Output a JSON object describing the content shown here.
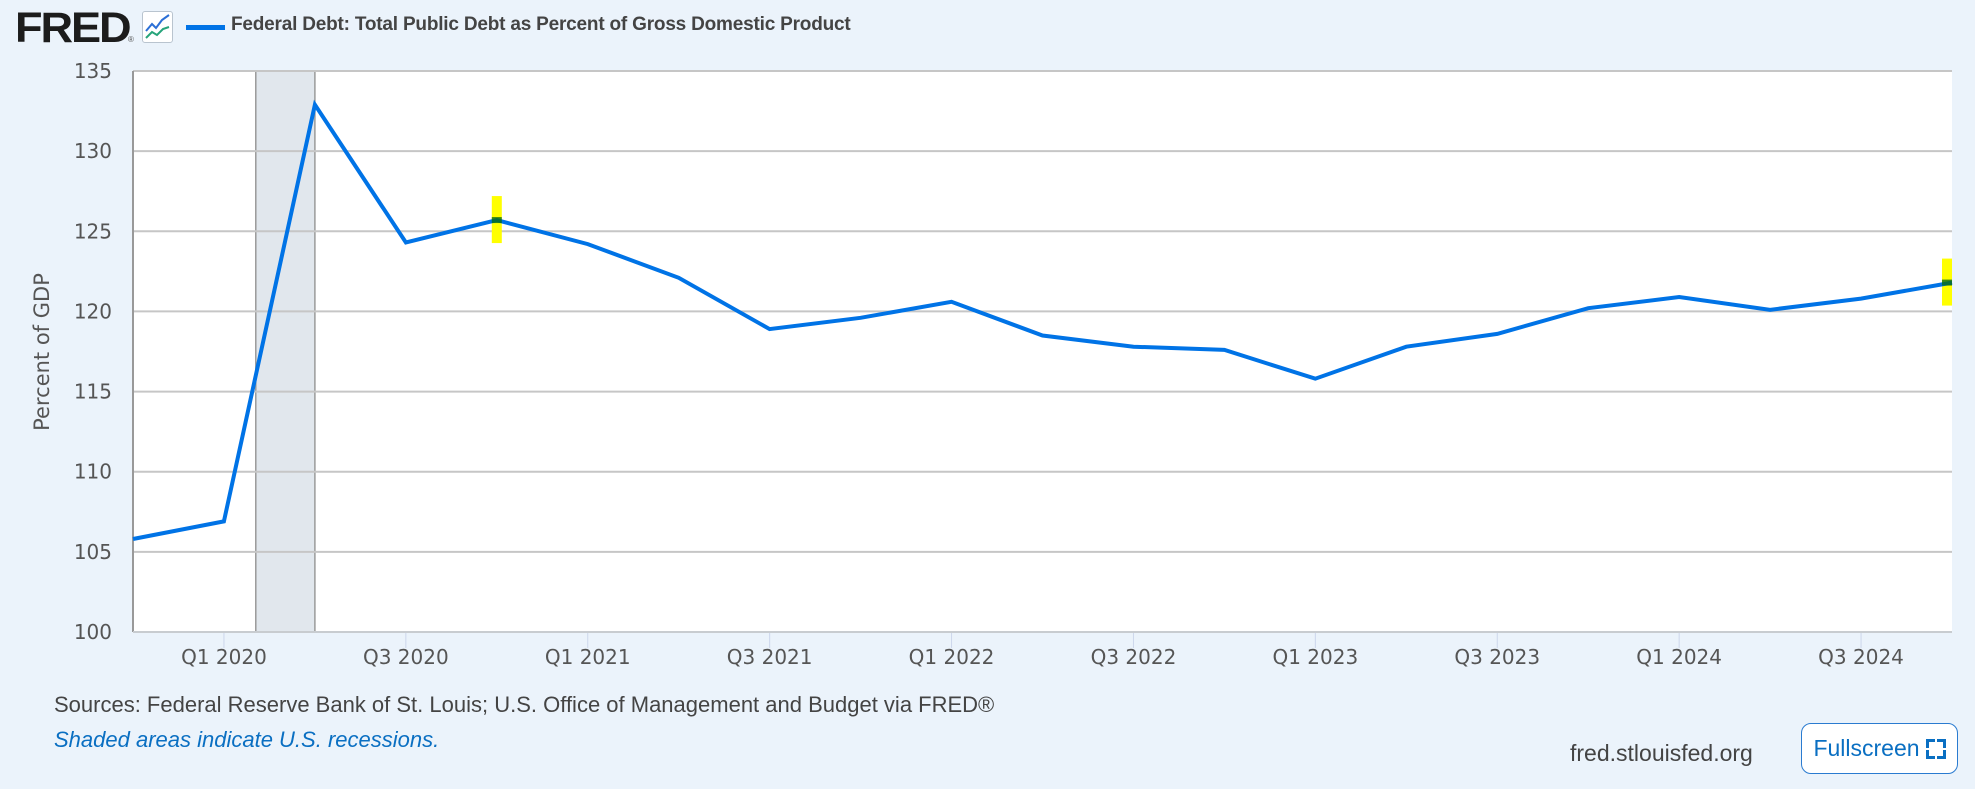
{
  "header": {
    "logo_text": "FRED",
    "logo_mark": "®",
    "chart_icon": "line-chart-icon",
    "series_title": "Federal Debt: Total Public Debt as Percent of Gross Domestic Product"
  },
  "colors": {
    "series": "#0073e6",
    "recession_shade": "#e1e7ed",
    "highlight": "#ffff00",
    "background": "#ebf3fb"
  },
  "footer": {
    "sources": "Sources: Federal Reserve Bank of St. Louis; U.S. Office of Management and Budget via FRED®",
    "recession_note": "Shaded areas indicate U.S. recessions.",
    "site": "fred.stlouisfed.org",
    "fullscreen_label": "Fullscreen",
    "fullscreen_icon": "fullscreen-icon"
  },
  "chart_data": {
    "type": "line",
    "title": "Federal Debt: Total Public Debt as Percent of Gross Domestic Product",
    "xlabel": "",
    "ylabel": "Percent of GDP",
    "ylim": [
      100,
      135
    ],
    "yticks": [
      100,
      105,
      110,
      115,
      120,
      125,
      130,
      135
    ],
    "grid": true,
    "x": [
      "Q4 2019",
      "Q1 2020",
      "Q2 2020",
      "Q3 2020",
      "Q4 2020",
      "Q1 2021",
      "Q2 2021",
      "Q3 2021",
      "Q4 2021",
      "Q1 2022",
      "Q2 2022",
      "Q3 2022",
      "Q4 2022",
      "Q1 2023",
      "Q2 2023",
      "Q3 2023",
      "Q4 2023",
      "Q1 2024",
      "Q2 2024",
      "Q3 2024",
      "Q4 2024"
    ],
    "xtick_labels": [
      {
        "index": 1,
        "label": "Q1 2020"
      },
      {
        "index": 3,
        "label": "Q3 2020"
      },
      {
        "index": 5,
        "label": "Q1 2021"
      },
      {
        "index": 7,
        "label": "Q3 2021"
      },
      {
        "index": 9,
        "label": "Q1 2022"
      },
      {
        "index": 11,
        "label": "Q3 2022"
      },
      {
        "index": 13,
        "label": "Q1 2023"
      },
      {
        "index": 15,
        "label": "Q3 2023"
      },
      {
        "index": 17,
        "label": "Q1 2024"
      },
      {
        "index": 19,
        "label": "Q3 2024"
      }
    ],
    "series": [
      {
        "name": "Federal Debt: Total Public Debt as Percent of Gross Domestic Product",
        "values": [
          105.8,
          106.9,
          132.9,
          124.3,
          125.7,
          124.2,
          122.1,
          118.9,
          119.6,
          120.6,
          118.5,
          117.8,
          117.6,
          115.8,
          117.8,
          118.6,
          120.2,
          120.9,
          120.1,
          120.8,
          121.8
        ]
      }
    ],
    "recessions": [
      {
        "start_index": 1.35,
        "end_index": 2.0
      }
    ],
    "highlights": [
      4,
      20
    ]
  }
}
